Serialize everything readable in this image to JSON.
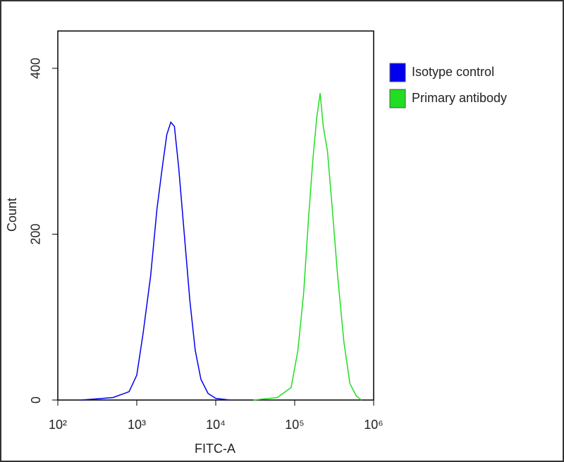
{
  "chart_data": {
    "type": "line",
    "xlabel": "FITC-A",
    "ylabel": "Count",
    "xscale": "log",
    "xlim": [
      100,
      1000000
    ],
    "xticks": [
      {
        "value": 100,
        "label": "10²"
      },
      {
        "value": 1000,
        "label": "10³"
      },
      {
        "value": 10000,
        "label": "10⁴"
      },
      {
        "value": 100000,
        "label": "10⁵"
      },
      {
        "value": 1000000,
        "label": "10⁶"
      }
    ],
    "ylim": [
      0,
      445
    ],
    "yticks": [
      0,
      200,
      400
    ],
    "legend": "right",
    "series": [
      {
        "name": "Isotype control",
        "color": "#0000ee",
        "x": [
          200,
          500,
          800,
          1000,
          1200,
          1500,
          1800,
          2100,
          2400,
          2700,
          3000,
          3400,
          4000,
          4700,
          5500,
          6500,
          8000,
          10000,
          15000
        ],
        "values": [
          0,
          3,
          10,
          30,
          80,
          150,
          230,
          280,
          320,
          335,
          330,
          280,
          200,
          120,
          60,
          25,
          8,
          2,
          0
        ]
      },
      {
        "name": "Primary antibody",
        "color": "#22dd22",
        "x": [
          30000,
          60000,
          90000,
          110000,
          130000,
          150000,
          170000,
          190000,
          210000,
          230000,
          260000,
          300000,
          350000,
          420000,
          500000,
          600000,
          700000
        ],
        "values": [
          0,
          3,
          15,
          60,
          130,
          220,
          290,
          340,
          370,
          330,
          300,
          230,
          150,
          70,
          20,
          5,
          0
        ]
      }
    ]
  }
}
